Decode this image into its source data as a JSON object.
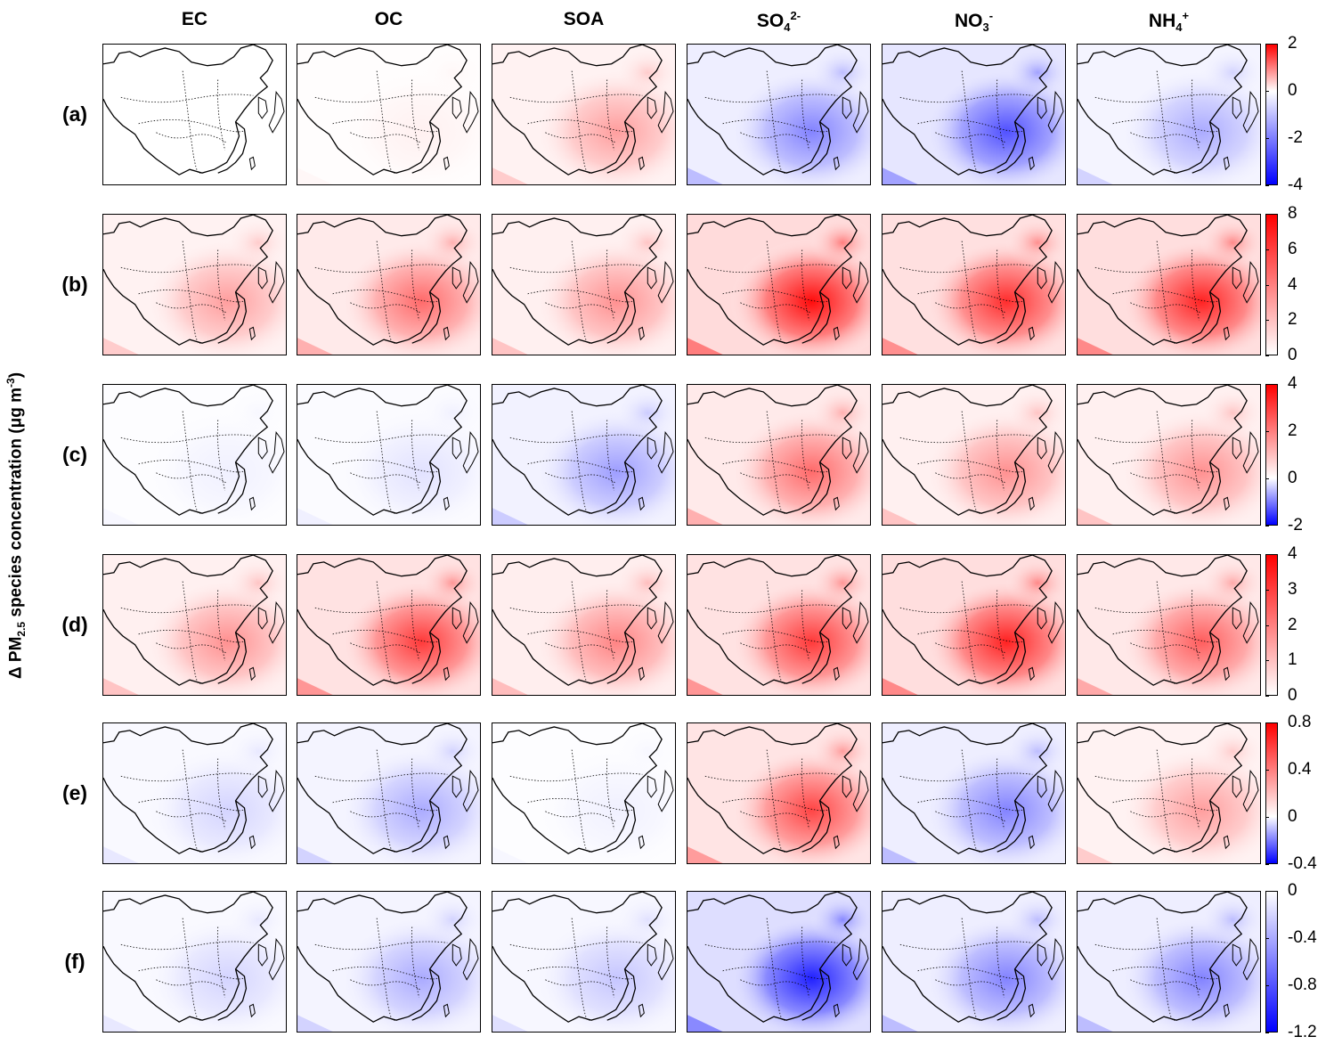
{
  "y_axis_label": {
    "prefix": "Δ PM",
    "sub": "2.5",
    "mid": " species concentration (μg m",
    "sup": "-3",
    "suffix": ")"
  },
  "columns": [
    {
      "key": "EC",
      "label": "EC",
      "sub": "",
      "sup": ""
    },
    {
      "key": "OC",
      "label": "OC",
      "sub": "",
      "sup": ""
    },
    {
      "key": "SOA",
      "label": "SOA",
      "sub": "",
      "sup": ""
    },
    {
      "key": "SO4",
      "label": "SO",
      "sub": "4",
      "sup": "2-"
    },
    {
      "key": "NO3",
      "label": "NO",
      "sub": "3",
      "sup": "-"
    },
    {
      "key": "NH4",
      "label": "NH",
      "sub": "4",
      "sup": "+"
    }
  ],
  "rows": [
    {
      "label": "(a)",
      "colorbar": {
        "type": "diverging",
        "ticks": [
          "2",
          "0",
          "-2",
          "-4"
        ],
        "min": -4,
        "max": 2
      },
      "intensity": [
        0.0,
        0.05,
        0.35,
        -0.45,
        -0.65,
        -0.3
      ]
    },
    {
      "label": "(b)",
      "colorbar": {
        "type": "positive",
        "ticks": [
          "8",
          "6",
          "4",
          "2",
          "0"
        ],
        "min": 0,
        "max": 8
      },
      "intensity": [
        0.35,
        0.55,
        0.4,
        0.95,
        0.8,
        0.85
      ]
    },
    {
      "label": "(c)",
      "colorbar": {
        "type": "diverging",
        "ticks": [
          "4",
          "2",
          "0",
          "-2"
        ],
        "min": -2,
        "max": 4
      },
      "intensity": [
        -0.05,
        -0.1,
        -0.35,
        0.55,
        0.4,
        0.4
      ]
    },
    {
      "label": "(d)",
      "colorbar": {
        "type": "positive",
        "ticks": [
          "4",
          "3",
          "2",
          "1",
          "0"
        ],
        "min": 0,
        "max": 4
      },
      "intensity": [
        0.4,
        0.75,
        0.45,
        0.75,
        0.85,
        0.6
      ]
    },
    {
      "label": "(e)",
      "colorbar": {
        "type": "diverging",
        "ticks": [
          "0.8",
          "0.4",
          "0",
          "-0.4"
        ],
        "min": -0.4,
        "max": 0.8
      },
      "intensity": [
        -0.15,
        -0.3,
        -0.05,
        0.7,
        -0.45,
        0.35
      ]
    },
    {
      "label": "(f)",
      "colorbar": {
        "type": "negative",
        "ticks": [
          "0",
          "-0.4",
          "-0.8",
          "-1.2"
        ],
        "min": -1.2,
        "max": 0
      },
      "intensity": [
        -0.15,
        -0.3,
        -0.2,
        -0.85,
        -0.45,
        -0.45
      ]
    }
  ],
  "colors": {
    "positive": "#ff0000",
    "negative": "#0000ff",
    "neutral": "#ffffff"
  }
}
